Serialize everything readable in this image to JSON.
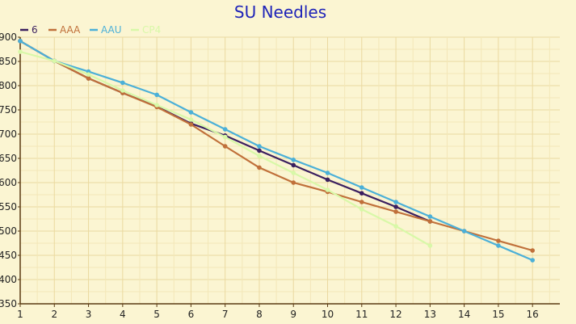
{
  "chart_data": {
    "type": "line",
    "title": "SU Needles",
    "xlabel": "",
    "ylabel": "",
    "xlim": [
      1,
      16
    ],
    "ylim": [
      350,
      900
    ],
    "x_ticks": [
      1,
      2,
      3,
      4,
      5,
      6,
      7,
      8,
      9,
      10,
      11,
      12,
      13,
      14,
      15,
      16
    ],
    "y_ticks": [
      350,
      400,
      450,
      500,
      550,
      600,
      650,
      700,
      750,
      800,
      850,
      900
    ],
    "grid": true,
    "legend": "top-left",
    "series": [
      {
        "name": "6",
        "color": "#3a1f5f",
        "x": [
          1,
          2,
          3,
          4,
          5,
          6,
          7,
          8,
          9,
          10,
          11,
          12,
          13
        ],
        "values": [
          892,
          851,
          815,
          785,
          757,
          722,
          697,
          666,
          636,
          606,
          578,
          550,
          520
        ]
      },
      {
        "name": "AAA",
        "color": "#c0703a",
        "x": [
          1,
          2,
          3,
          4,
          5,
          6,
          7,
          8,
          9,
          10,
          11,
          12,
          13,
          14,
          15,
          16
        ],
        "values": [
          892,
          851,
          815,
          785,
          756,
          720,
          675,
          631,
          600,
          581,
          560,
          540,
          520,
          500,
          480,
          460
        ]
      },
      {
        "name": "AAU",
        "color": "#4bb0d8",
        "x": [
          1,
          2,
          3,
          4,
          5,
          6,
          7,
          8,
          9,
          10,
          11,
          12,
          13,
          14,
          15,
          16
        ],
        "values": [
          892,
          851,
          829,
          806,
          781,
          745,
          710,
          675,
          647,
          620,
          590,
          560,
          530,
          500,
          470,
          440
        ]
      },
      {
        "name": "CP4",
        "color": "#d8f8a8",
        "x": [
          1,
          2,
          3,
          4,
          5,
          6,
          7,
          8,
          9,
          10,
          11,
          12,
          13
        ],
        "values": [
          870,
          851,
          823,
          790,
          760,
          730,
          694,
          655,
          620,
          585,
          545,
          510,
          470
        ]
      }
    ]
  }
}
